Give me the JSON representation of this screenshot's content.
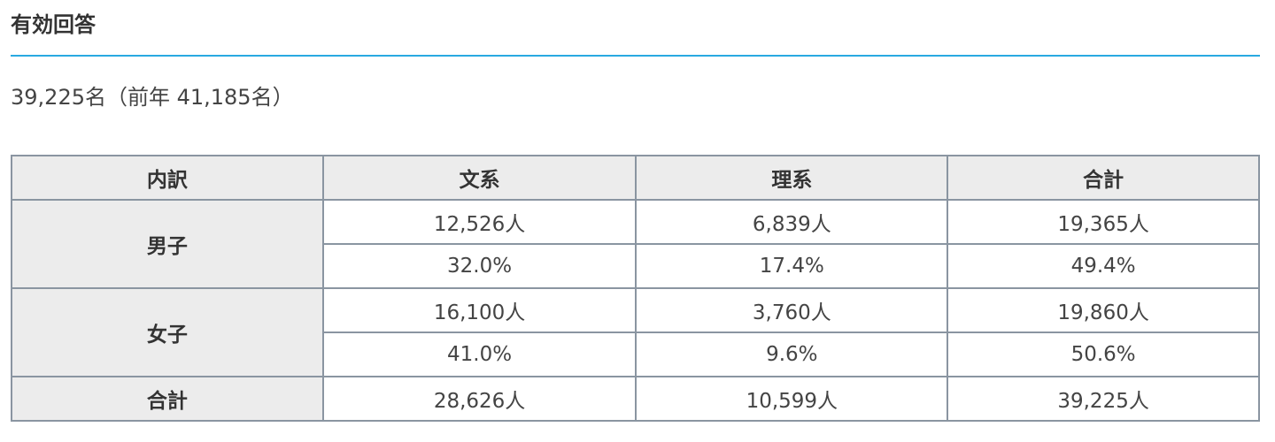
{
  "heading": "有効回答",
  "summary": "39,225名（前年 41,185名）",
  "colors": {
    "accent_rule": "#29a9e1",
    "header_bg": "#ececec",
    "border": "#8a95a1"
  },
  "table": {
    "headers": [
      "内訳",
      "文系",
      "理系",
      "合計"
    ],
    "groups": [
      {
        "label": "男子",
        "counts": [
          "12,526人",
          "6,839人",
          "19,365人"
        ],
        "percents": [
          "32.0%",
          "17.4%",
          "49.4%"
        ]
      },
      {
        "label": "女子",
        "counts": [
          "16,100人",
          "3,760人",
          "19,860人"
        ],
        "percents": [
          "41.0%",
          "9.6%",
          "50.6%"
        ]
      }
    ],
    "total": {
      "label": "合計",
      "values": [
        "28,626人",
        "10,599人",
        "39,225人"
      ]
    }
  }
}
